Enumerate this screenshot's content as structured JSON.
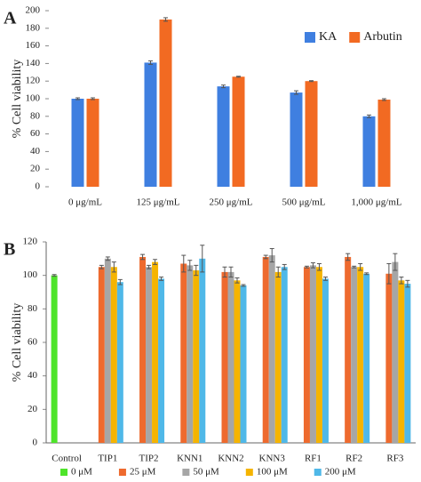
{
  "chart_data": [
    {
      "type": "bar",
      "panel_label": "A",
      "ylabel": "% Cell viability",
      "categories": [
        "0 μg/mL",
        "125 μg/mL",
        "250 μg/mL",
        "500 μg/mL",
        "1,000 μg/mL"
      ],
      "series": [
        {
          "name": "KA",
          "color": "#3f7fe0",
          "values": [
            100,
            141,
            114,
            107,
            80
          ],
          "errors": [
            1,
            2,
            1.5,
            2,
            1.5
          ]
        },
        {
          "name": "Arbutin",
          "color": "#f26a22",
          "values": [
            100,
            190,
            125,
            120,
            99
          ],
          "errors": [
            1,
            2,
            0.5,
            0.5,
            1
          ]
        }
      ],
      "ylim": [
        0,
        200
      ],
      "yticks": [
        0,
        20,
        40,
        60,
        80,
        100,
        120,
        140,
        160,
        180,
        200
      ],
      "grid": false,
      "legend": "upper right"
    },
    {
      "type": "bar",
      "panel_label": "B",
      "ylabel": "% Cell viability",
      "categories": [
        "Control",
        "TIP1",
        "TIP2",
        "KNN1",
        "KNN2",
        "KNN3",
        "RF1",
        "RF2",
        "RF3"
      ],
      "series": [
        {
          "name": "0 μM",
          "color": "#4ee42a",
          "values": [
            100,
            null,
            null,
            null,
            null,
            null,
            null,
            null,
            null
          ],
          "errors": [
            0.5,
            null,
            null,
            null,
            null,
            null,
            null,
            null,
            null
          ]
        },
        {
          "name": "25 μM",
          "color": "#ee6a2e",
          "values": [
            null,
            105,
            111,
            107,
            102,
            111,
            105,
            111,
            101
          ],
          "errors": [
            null,
            1,
            1.5,
            5,
            3,
            1,
            0.5,
            2,
            6
          ]
        },
        {
          "name": "50 μM",
          "color": "#a6a6a6",
          "values": [
            null,
            110,
            105,
            106,
            102,
            112,
            106,
            105,
            108
          ],
          "errors": [
            null,
            1,
            1,
            3,
            3,
            4,
            1.5,
            0.5,
            5
          ]
        },
        {
          "name": "100 μM",
          "color": "#f5b400",
          "values": [
            null,
            105,
            108,
            103,
            97,
            102,
            105,
            105,
            97
          ],
          "errors": [
            null,
            3,
            1.5,
            3,
            1.5,
            3,
            2,
            2,
            2
          ]
        },
        {
          "name": "200 μM",
          "color": "#4fb8e8",
          "values": [
            null,
            96,
            98,
            110,
            94,
            105,
            98,
            101,
            95
          ],
          "errors": [
            null,
            1.5,
            1,
            8,
            0.5,
            1.5,
            1,
            0.5,
            2
          ]
        }
      ],
      "ylim": [
        0,
        120
      ],
      "yticks": [
        0,
        20,
        40,
        60,
        80,
        100,
        120
      ],
      "grid": false,
      "legend": "bottom"
    }
  ]
}
